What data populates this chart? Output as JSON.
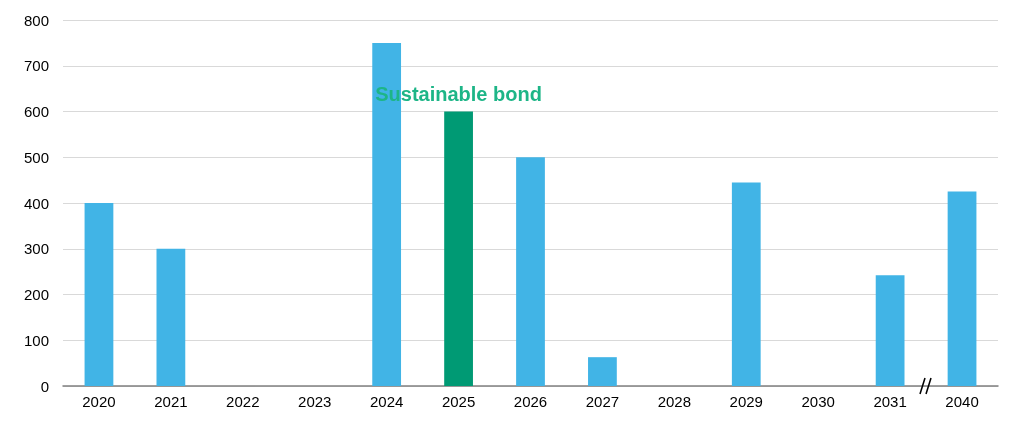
{
  "chart_data": {
    "type": "bar",
    "categories": [
      "2020",
      "2021",
      "2022",
      "2023",
      "2024",
      "2025",
      "2026",
      "2027",
      "2028",
      "2029",
      "2030",
      "2031",
      "2040"
    ],
    "values": [
      400,
      300,
      0,
      0,
      750,
      600,
      500,
      63,
      0,
      445,
      0,
      242,
      425
    ],
    "colors": [
      "#41b4e6",
      "#41b4e6",
      "#41b4e6",
      "#41b4e6",
      "#41b4e6",
      "#009a74",
      "#41b4e6",
      "#41b4e6",
      "#41b4e6",
      "#41b4e6",
      "#41b4e6",
      "#41b4e6",
      "#41b4e6"
    ],
    "annotations": [
      {
        "text": "Sustainable bond",
        "x": "2025",
        "y": 600
      }
    ],
    "ylim": [
      0,
      800
    ],
    "yticks": [
      0,
      100,
      200,
      300,
      400,
      500,
      600,
      700,
      800
    ],
    "grid": "y"
  }
}
